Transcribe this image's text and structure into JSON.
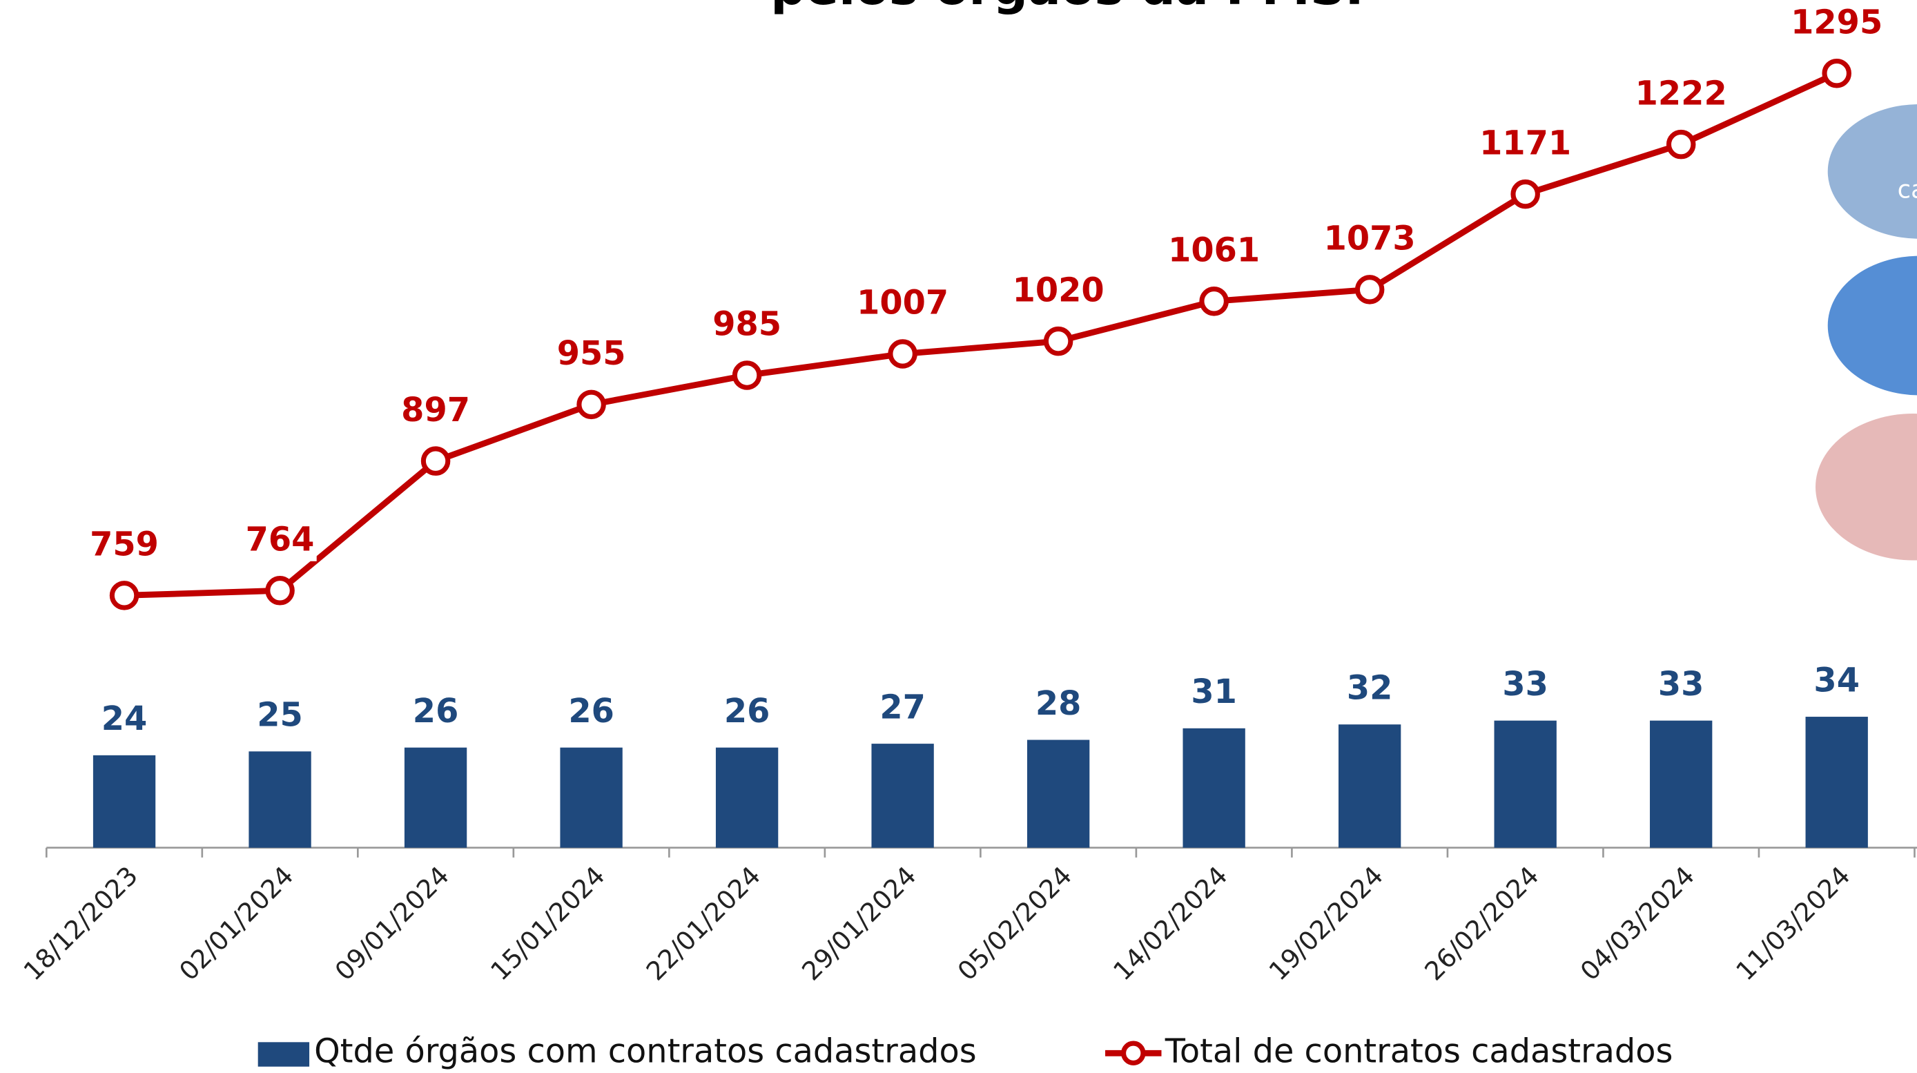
{
  "chart_data": {
    "type": "bar-line",
    "title": "pelos órgãos da PMSP",
    "side_text": "ca",
    "categories": [
      "18/12/2023",
      "02/01/2024",
      "09/01/2024",
      "15/01/2024",
      "22/01/2024",
      "29/01/2024",
      "05/02/2024",
      "14/02/2024",
      "19/02/2024",
      "26/02/2024",
      "04/03/2024",
      "11/03/2024"
    ],
    "ylim": [
      0,
      220
    ],
    "y2lim": [
      500,
      1370
    ],
    "series": [
      {
        "name": "Qtde órgãos com contratos cadastrados",
        "type": "bar",
        "color": "#1f497d",
        "values": [
          24,
          25,
          26,
          26,
          26,
          27,
          28,
          31,
          32,
          33,
          33,
          34
        ]
      },
      {
        "name": "Total de contratos cadastrados",
        "type": "line",
        "axis": "y2",
        "color": "#c00000",
        "values": [
          759,
          764,
          897,
          955,
          985,
          1007,
          1020,
          1061,
          1073,
          1171,
          1222,
          1295
        ]
      }
    ]
  }
}
